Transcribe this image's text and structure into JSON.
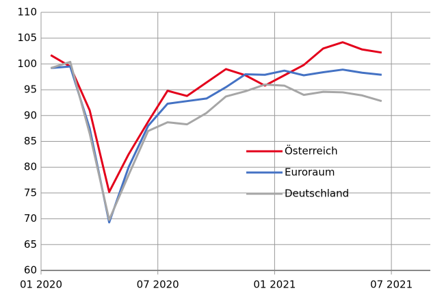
{
  "chart_data": {
    "type": "line",
    "x": [
      0.5,
      1.5,
      2.5,
      3.5,
      4.5,
      5.5,
      6.5,
      7.5,
      8.5,
      9.5,
      10.5,
      11.5,
      12.5,
      13.5,
      14.5,
      15.5,
      16.5,
      17.5
    ],
    "series": [
      {
        "name": "Österreich",
        "color": "#e3001b",
        "values": [
          101.7,
          99.5,
          91,
          75.2,
          82.5,
          88.8,
          94.8,
          93.8,
          96.4,
          99,
          97.8,
          95.8,
          97.8,
          99.8,
          103,
          104.2,
          102.8,
          102.2
        ]
      },
      {
        "name": "Euroraum",
        "color": "#4472c4",
        "values": [
          99.2,
          99.5,
          87.5,
          69.3,
          80,
          88,
          92.3,
          92.8,
          93.3,
          95.5,
          98,
          97.9,
          98.7,
          97.8,
          98.4,
          98.9,
          98.3,
          97.9
        ]
      },
      {
        "name": "Deutschland",
        "color": "#a6a6a6",
        "values": [
          99.2,
          100.4,
          86.5,
          69.8,
          78.5,
          87,
          88.7,
          88.3,
          90.5,
          93.7,
          94.7,
          96,
          95.8,
          94,
          94.6,
          94.5,
          93.9,
          92.8
        ]
      }
    ],
    "xlim": [
      0,
      20
    ],
    "xticks": [
      {
        "value": 0,
        "label": "01 2020"
      },
      {
        "value": 6,
        "label": "07 2020"
      },
      {
        "value": 12,
        "label": "01 2021"
      },
      {
        "value": 18,
        "label": "07 2021"
      }
    ],
    "ylim": [
      60,
      110
    ],
    "yticks": [
      60,
      65,
      70,
      75,
      80,
      85,
      90,
      95,
      100,
      105,
      110
    ],
    "grid": true,
    "legend": "center right"
  }
}
